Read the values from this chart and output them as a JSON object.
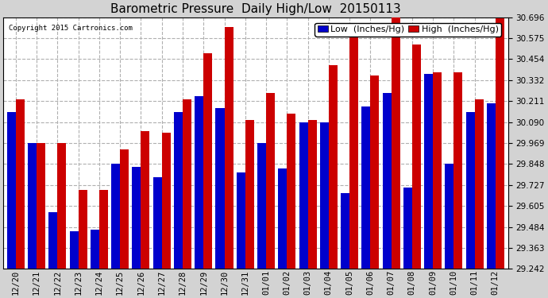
{
  "title": "Barometric Pressure  Daily High/Low  20150113",
  "copyright": "Copyright 2015 Cartronics.com",
  "legend_low": "Low  (Inches/Hg)",
  "legend_high": "High  (Inches/Hg)",
  "background_color": "#d3d3d3",
  "plot_bg_color": "#ffffff",
  "grid_color": "#b0b0b0",
  "ylim_min": 29.242,
  "ylim_max": 30.696,
  "yticks": [
    29.242,
    29.363,
    29.484,
    29.605,
    29.727,
    29.848,
    29.969,
    30.09,
    30.211,
    30.332,
    30.454,
    30.575,
    30.696
  ],
  "dates": [
    "12/20",
    "12/21",
    "12/22",
    "12/23",
    "12/24",
    "12/25",
    "12/26",
    "12/27",
    "12/28",
    "12/29",
    "12/30",
    "12/31",
    "01/01",
    "01/02",
    "01/03",
    "01/04",
    "01/05",
    "01/06",
    "01/07",
    "01/08",
    "01/09",
    "01/10",
    "01/11",
    "01/12"
  ],
  "low_values": [
    30.15,
    29.97,
    29.57,
    29.46,
    29.47,
    29.85,
    29.83,
    29.77,
    30.15,
    30.24,
    30.17,
    29.8,
    29.97,
    29.82,
    30.09,
    30.09,
    29.68,
    30.18,
    30.26,
    29.71,
    30.37,
    29.85,
    30.15,
    30.2
  ],
  "high_values": [
    30.22,
    29.97,
    29.97,
    29.7,
    29.7,
    29.93,
    30.04,
    30.03,
    30.22,
    30.49,
    30.64,
    30.1,
    30.26,
    30.14,
    30.1,
    30.42,
    30.59,
    30.36,
    30.71,
    30.54,
    30.38,
    30.38,
    30.22,
    30.69
  ],
  "low_color": "#0000cc",
  "high_color": "#cc0000",
  "bar_width": 0.42,
  "title_fontsize": 11,
  "tick_fontsize": 7.5,
  "legend_fontsize": 8
}
